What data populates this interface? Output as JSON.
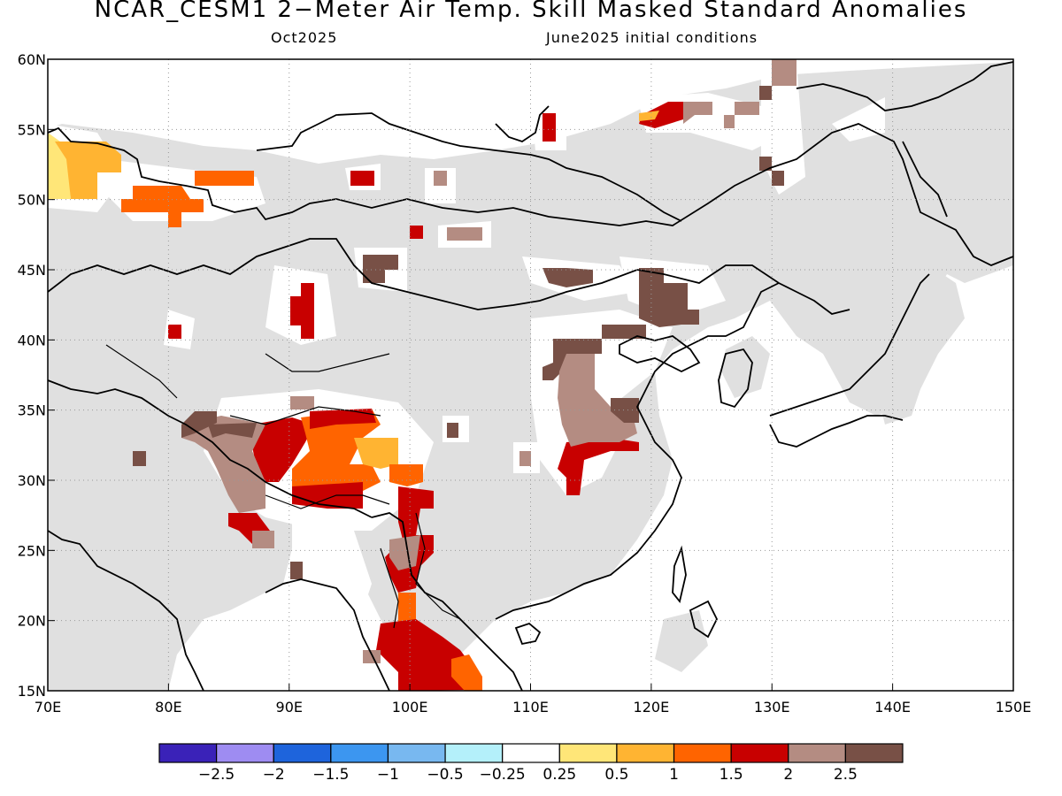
{
  "title": "NCAR_CESM1 2−Meter Air Temp. Skill Masked Standard Anomalies",
  "subtitle_left": "Oct2025",
  "subtitle_right": "June2025 initial conditions",
  "map": {
    "lon_range": [
      70,
      150
    ],
    "lat_range": [
      15,
      60
    ],
    "lon_ticks": [
      "70E",
      "80E",
      "90E",
      "100E",
      "110E",
      "120E",
      "130E",
      "140E",
      "150E"
    ],
    "lat_ticks": [
      "15N",
      "20N",
      "25N",
      "30N",
      "35N",
      "40N",
      "45N",
      "50N",
      "55N",
      "60N"
    ],
    "grid": "dotted",
    "masked_color": "#e0e0e0"
  },
  "legend": {
    "colors": [
      "#3a22b8",
      "#9e8cf2",
      "#1e64dc",
      "#3c96f0",
      "#78b8f0",
      "#b4f0fa",
      "#ffffff",
      "#ffe678",
      "#ffb432",
      "#ff6400",
      "#c80000",
      "#b48c82",
      "#785046"
    ],
    "labels": [
      "−2.5",
      "−2",
      "−1.5",
      "−1",
      "−0.5",
      "−0.25",
      "0.25",
      "0.5",
      "1",
      "1.5",
      "2",
      "2.5"
    ]
  }
}
